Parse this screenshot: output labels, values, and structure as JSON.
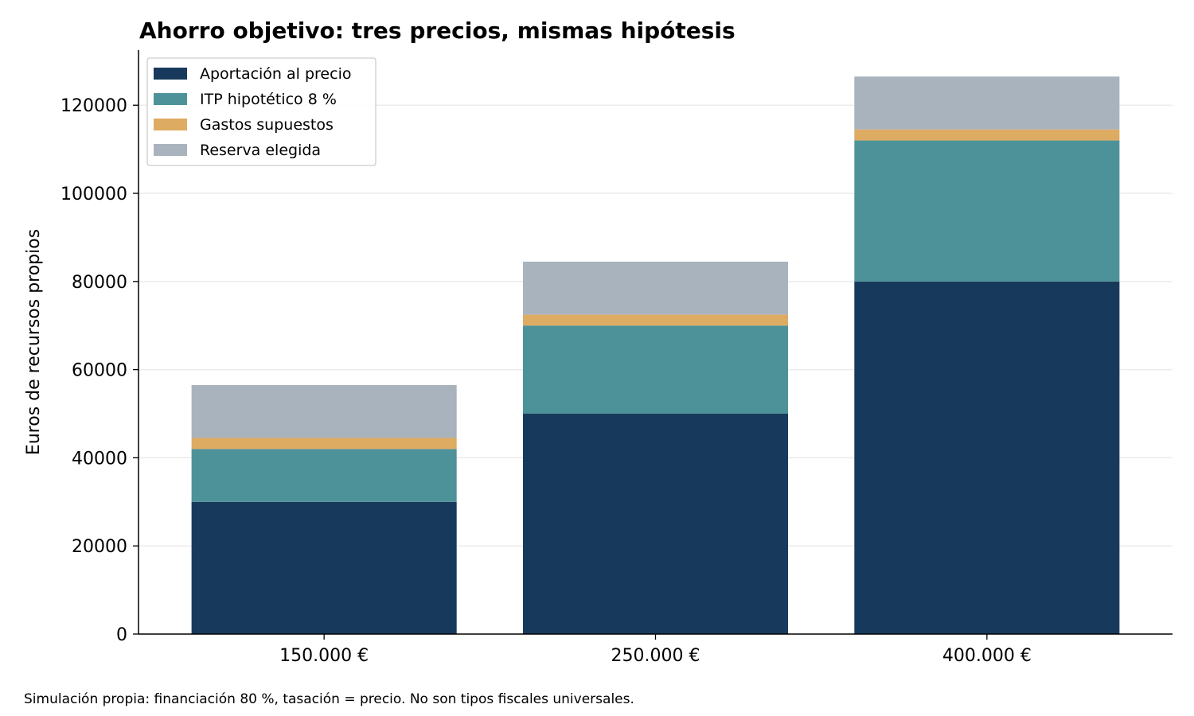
{
  "title": "Ahorro objetivo: tres precios, mismas hipótesis",
  "footnote": "Simulación propia: financiación 80 %, tasación = precio. No son tipos fiscales universales.",
  "colors": {
    "aportacion": "#173a5c",
    "itp": "#4e9299",
    "gastos": "#deab62",
    "reserva": "#a9b3bd",
    "grid": "#ececec",
    "axis": "#000000"
  },
  "chart_data": {
    "type": "bar",
    "stacked": true,
    "categories": [
      "150.000 €",
      "250.000 €",
      "400.000 €"
    ],
    "series": [
      {
        "name": "Aportación al precio",
        "color": "#173a5c",
        "values": [
          30000,
          50000,
          80000
        ]
      },
      {
        "name": "ITP hipotético 8 %",
        "color": "#4e9299",
        "values": [
          12000,
          20000,
          32000
        ]
      },
      {
        "name": "Gastos supuestos",
        "color": "#deab62",
        "values": [
          2500,
          2500,
          2500
        ]
      },
      {
        "name": "Reserva elegida",
        "color": "#a9b3bd",
        "values": [
          12000,
          12000,
          12000
        ]
      }
    ],
    "ylabel": "Euros de recursos propios",
    "xlabel": "",
    "ylim": [
      0,
      132500
    ],
    "yticks": [
      0,
      20000,
      40000,
      60000,
      80000,
      100000,
      120000
    ],
    "grid": "horizontal",
    "legend_position": "top-left"
  }
}
